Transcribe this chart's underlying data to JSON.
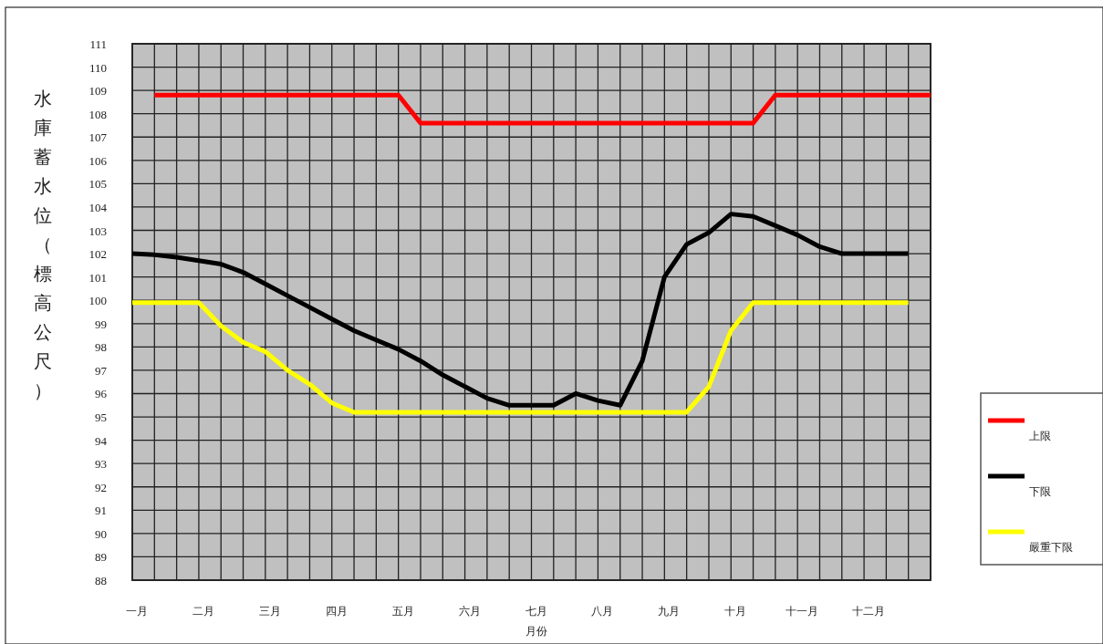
{
  "chart_data": {
    "type": "line",
    "xlabel": "月份",
    "ylabel": "水庫蓄水位（標高公尺）",
    "categories": [
      "一月",
      null,
      null,
      "二月",
      null,
      null,
      "三月",
      null,
      null,
      "四月",
      null,
      null,
      "五月",
      null,
      null,
      "六月",
      null,
      null,
      "七月",
      null,
      null,
      "八月",
      null,
      null,
      "九月",
      null,
      null,
      "十月",
      null,
      null,
      "十一月",
      null,
      null,
      "十二月",
      null,
      null,
      null
    ],
    "ylim": [
      88,
      111
    ],
    "yticks": [
      88,
      89,
      90,
      91,
      92,
      93,
      94,
      95,
      96,
      97,
      98,
      99,
      100,
      101,
      102,
      103,
      104,
      105,
      106,
      107,
      108,
      109,
      110,
      111
    ],
    "grid": true,
    "legend": "right",
    "line_style": "solid",
    "series": [
      {
        "name": "上限",
        "color": "#ff0000",
        "values": [
          null,
          108.8,
          108.8,
          108.8,
          108.8,
          108.8,
          108.8,
          108.8,
          108.8,
          108.8,
          108.8,
          108.8,
          108.8,
          107.6,
          107.6,
          107.6,
          107.6,
          107.6,
          107.6,
          107.6,
          107.6,
          107.6,
          107.6,
          107.6,
          107.6,
          107.6,
          107.6,
          107.6,
          107.6,
          108.8,
          108.8,
          108.8,
          108.8,
          108.8,
          108.8,
          108.8,
          108.8
        ]
      },
      {
        "name": "下限",
        "color": "#000000",
        "values": [
          102.0,
          101.95,
          101.85,
          101.7,
          101.55,
          101.2,
          100.7,
          100.2,
          99.7,
          99.2,
          98.7,
          98.3,
          97.9,
          97.4,
          96.8,
          96.3,
          95.8,
          95.5,
          95.5,
          95.5,
          96.0,
          95.7,
          95.5,
          97.4,
          101.0,
          102.4,
          102.9,
          103.7,
          103.6,
          103.2,
          102.8,
          102.3,
          102.0,
          102.0,
          102.0,
          102.0,
          null
        ]
      },
      {
        "name": "嚴重下限",
        "color": "#ffff00",
        "values": [
          99.9,
          99.9,
          99.9,
          99.9,
          98.9,
          98.2,
          97.8,
          97.0,
          96.4,
          95.6,
          95.2,
          95.2,
          95.2,
          95.2,
          95.2,
          95.2,
          95.2,
          95.2,
          95.2,
          95.2,
          95.2,
          95.2,
          95.2,
          95.2,
          95.2,
          95.2,
          96.3,
          98.7,
          99.9,
          99.9,
          99.9,
          99.9,
          99.9,
          99.9,
          99.9,
          99.9,
          null
        ]
      }
    ]
  }
}
